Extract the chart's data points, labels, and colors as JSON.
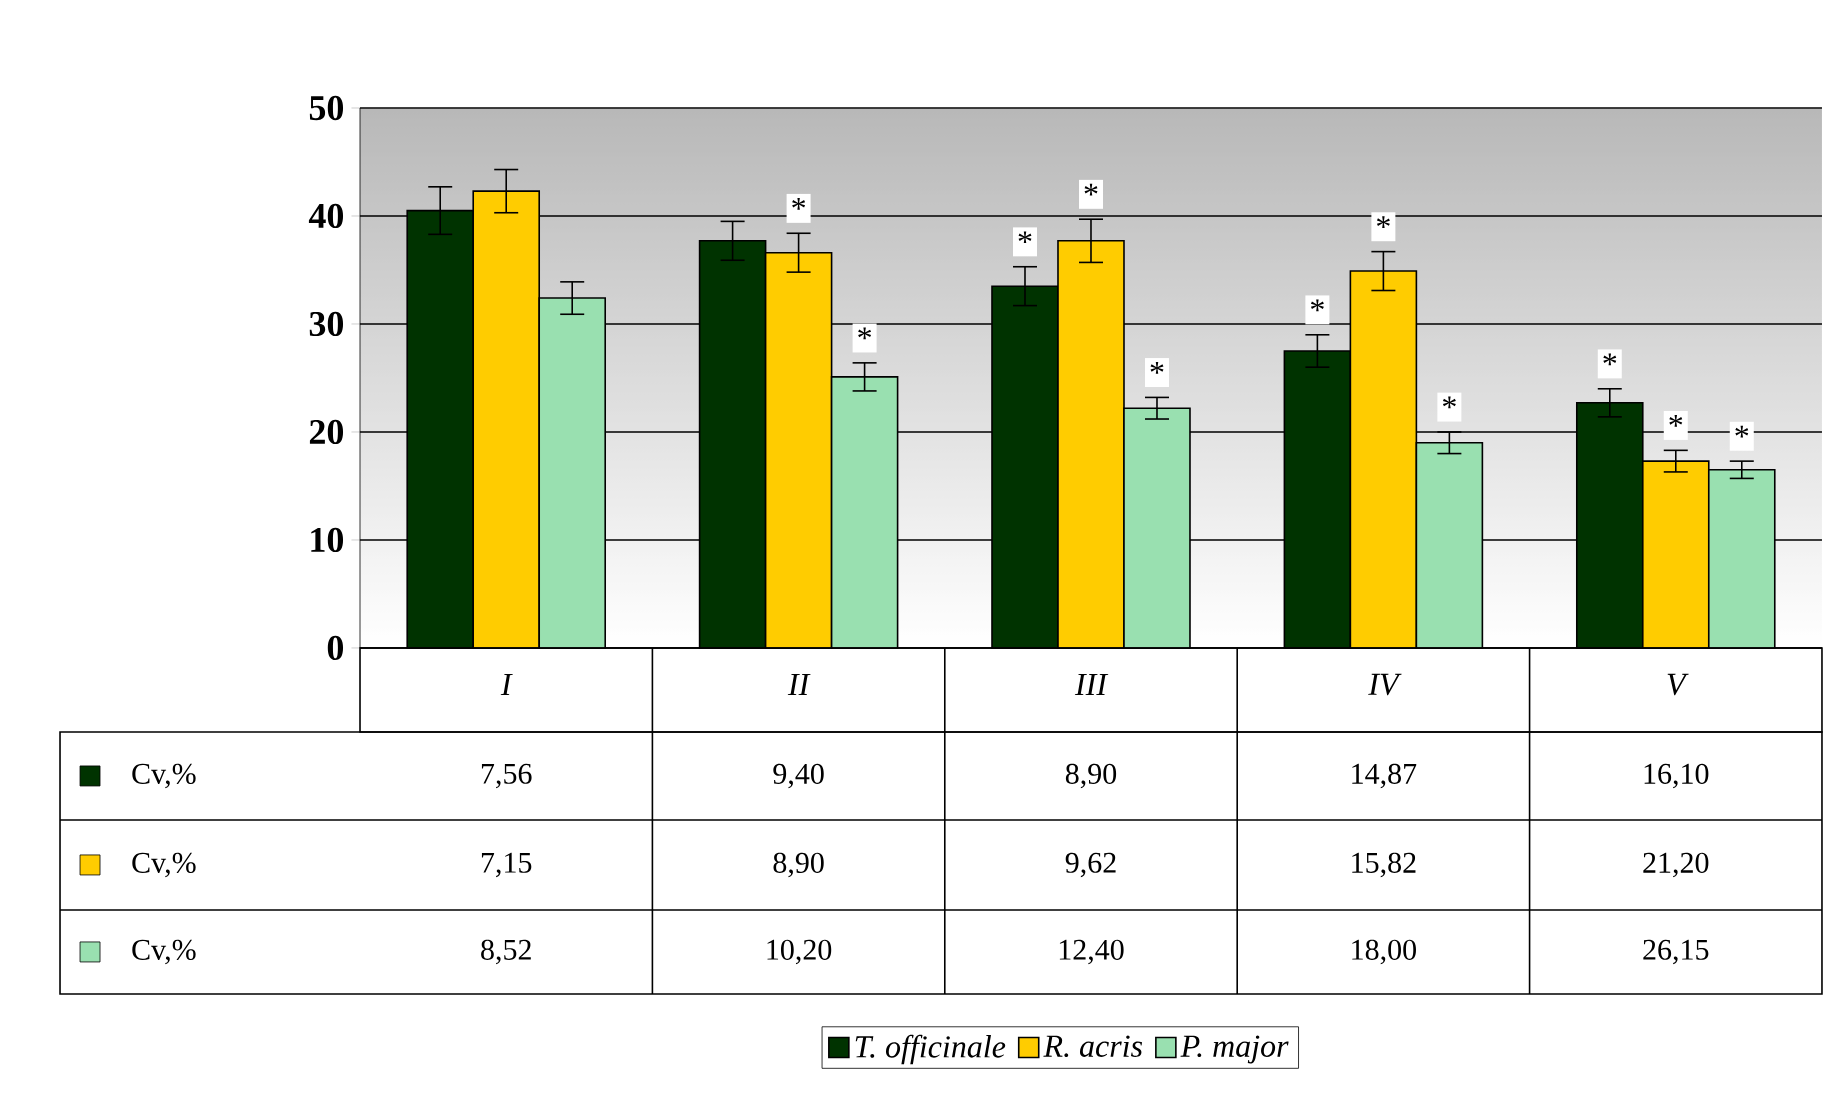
{
  "chart_data": {
    "type": "bar",
    "categories": [
      "I",
      "II",
      "III",
      "IV",
      "V"
    ],
    "series": [
      {
        "name": "T. officinale",
        "color": "#003300",
        "values": [
          40.5,
          37.7,
          33.5,
          27.5,
          22.7
        ],
        "errors": [
          2.2,
          1.8,
          1.8,
          1.5,
          1.3
        ],
        "value_labels": [
          null,
          null,
          "*",
          "*",
          "*"
        ]
      },
      {
        "name": "R. acris",
        "color": "#ffcc00",
        "values": [
          42.3,
          36.6,
          37.7,
          34.9,
          17.3
        ],
        "errors": [
          2.0,
          1.8,
          2.0,
          1.8,
          1.0
        ],
        "value_labels": [
          null,
          "*",
          "*",
          "*",
          "*"
        ]
      },
      {
        "name": "P. major",
        "color": "#99e0b0",
        "values": [
          32.4,
          25.1,
          22.2,
          19.0,
          16.5
        ],
        "errors": [
          1.5,
          1.3,
          1.0,
          1.0,
          0.8
        ],
        "value_labels": [
          null,
          "*",
          "*",
          "*",
          "*"
        ]
      }
    ],
    "ylim": [
      0,
      50
    ],
    "yticks": [
      0,
      10,
      20,
      30,
      40,
      50
    ],
    "grid": "y",
    "legend": "bottom",
    "annotations": [
      "Cv,%",
      "7,56",
      "9,40",
      "8,90",
      "14,87",
      "16,10",
      "Cv,%",
      "7,15",
      "8,90",
      "9,62",
      "15,82",
      "21,20",
      "Cv,%",
      "8,52",
      "10,20",
      "12,40",
      "18,00",
      "26,15"
    ]
  }
}
